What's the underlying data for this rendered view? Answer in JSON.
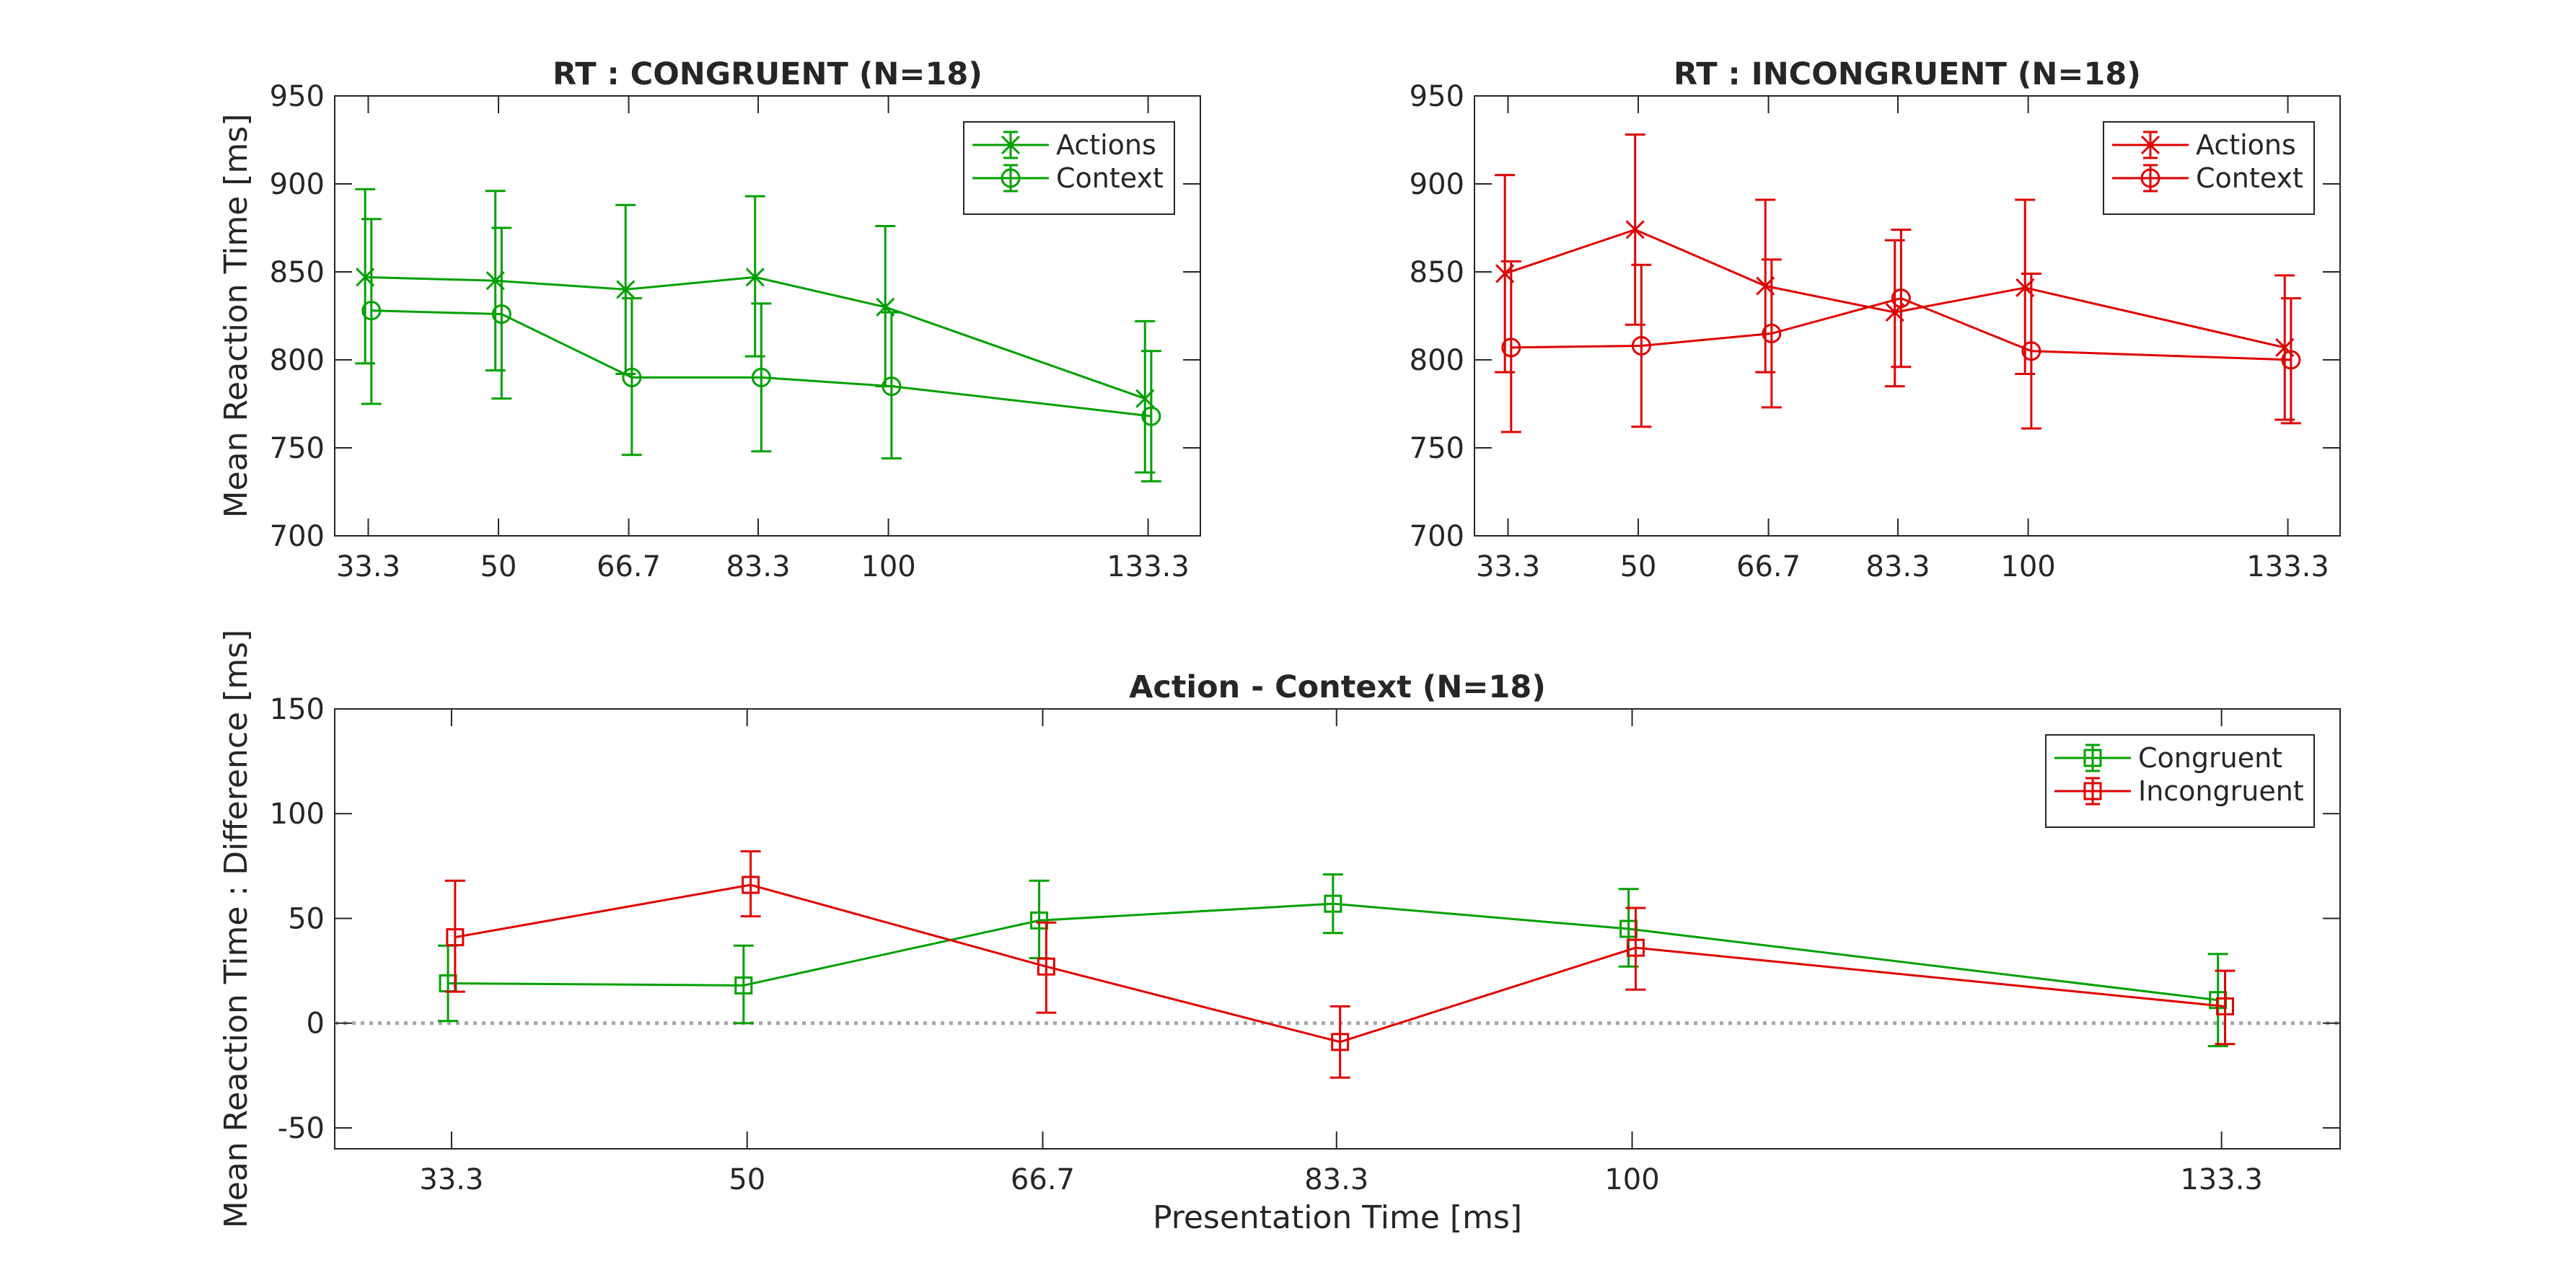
{
  "colors": {
    "congruent": "#00a000",
    "incongruent": "#e00000",
    "zero_line": "#a6a6a6"
  },
  "chart_data": [
    {
      "type": "line",
      "title": "RT : CONGRUENT (N=18)",
      "xlabel": "",
      "ylabel": "Mean Reaction Time [ms]",
      "x": [
        33.3,
        50,
        66.7,
        83.3,
        100,
        133.3
      ],
      "xtick_labels": [
        "33.3",
        "50",
        "66.7",
        "83.3",
        "100",
        "133.3"
      ],
      "xlim": [
        29,
        140
      ],
      "ylim": [
        700,
        950
      ],
      "yticks": [
        700,
        750,
        800,
        850,
        900,
        950
      ],
      "legend_position": "top-right",
      "series": [
        {
          "name": "Actions",
          "color": "#00a000",
          "marker": "x",
          "x_offset": -0.4,
          "values": [
            847,
            845,
            840,
            847,
            830,
            778
          ],
          "lower": [
            798,
            794,
            792,
            802,
            785,
            736
          ],
          "upper": [
            897,
            896,
            888,
            893,
            876,
            822
          ]
        },
        {
          "name": "Context",
          "color": "#00a000",
          "marker": "o",
          "x_offset": 0.4,
          "values": [
            828,
            826,
            790,
            790,
            785,
            768
          ],
          "lower": [
            775,
            778,
            746,
            748,
            744,
            731
          ],
          "upper": [
            880,
            875,
            835,
            832,
            827,
            805
          ]
        }
      ]
    },
    {
      "type": "line",
      "title": "RT : INCONGRUENT (N=18)",
      "xlabel": "",
      "ylabel": "",
      "x": [
        33.3,
        50,
        66.7,
        83.3,
        100,
        133.3
      ],
      "xtick_labels": [
        "33.3",
        "50",
        "66.7",
        "83.3",
        "100",
        "133.3"
      ],
      "xlim": [
        29,
        140
      ],
      "ylim": [
        700,
        950
      ],
      "yticks": [
        700,
        750,
        800,
        850,
        900,
        950
      ],
      "legend_position": "top-right",
      "series": [
        {
          "name": "Actions",
          "color": "#e00000",
          "marker": "x",
          "x_offset": -0.4,
          "values": [
            849,
            874,
            842,
            827,
            841,
            807
          ],
          "lower": [
            793,
            820,
            793,
            785,
            792,
            766
          ],
          "upper": [
            905,
            928,
            891,
            868,
            891,
            848
          ]
        },
        {
          "name": "Context",
          "color": "#e00000",
          "marker": "o",
          "x_offset": 0.4,
          "values": [
            807,
            808,
            815,
            835,
            805,
            800
          ],
          "lower": [
            759,
            762,
            773,
            796,
            761,
            764
          ],
          "upper": [
            856,
            854,
            857,
            874,
            849,
            835
          ]
        }
      ]
    },
    {
      "type": "line",
      "title": "Action - Context (N=18)",
      "xlabel": "Presentation Time [ms]",
      "ylabel": "Mean Reaction Time : Difference [ms]",
      "x": [
        33.3,
        50,
        66.7,
        83.3,
        100,
        133.3
      ],
      "xtick_labels": [
        "33.3",
        "50",
        "66.7",
        "83.3",
        "100",
        "133.3"
      ],
      "xlim": [
        26.7,
        140
      ],
      "ylim": [
        -60,
        150
      ],
      "yticks": [
        -50,
        0,
        50,
        100,
        150
      ],
      "legend_position": "top-right",
      "zero_line": true,
      "series": [
        {
          "name": "Congruent",
          "color": "#00a000",
          "marker": "s",
          "x_offset": -0.2,
          "values": [
            19,
            18,
            49,
            57,
            45,
            11
          ],
          "lower": [
            1,
            0,
            31,
            43,
            27,
            -11
          ],
          "upper": [
            37,
            37,
            68,
            71,
            64,
            33
          ]
        },
        {
          "name": "Incongruent",
          "color": "#e00000",
          "marker": "s",
          "x_offset": 0.2,
          "values": [
            41,
            66,
            27,
            -9,
            36,
            8
          ],
          "lower": [
            15,
            51,
            5,
            -26,
            16,
            -10
          ],
          "upper": [
            68,
            82,
            48,
            8,
            55,
            25
          ]
        }
      ]
    }
  ]
}
